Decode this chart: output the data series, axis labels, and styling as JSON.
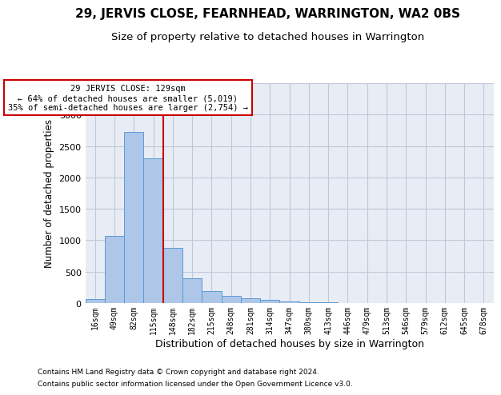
{
  "title1": "29, JERVIS CLOSE, FEARNHEAD, WARRINGTON, WA2 0BS",
  "title2": "Size of property relative to detached houses in Warrington",
  "xlabel": "Distribution of detached houses by size in Warrington",
  "ylabel": "Number of detached properties",
  "categories": [
    "16sqm",
    "49sqm",
    "82sqm",
    "115sqm",
    "148sqm",
    "182sqm",
    "215sqm",
    "248sqm",
    "281sqm",
    "314sqm",
    "347sqm",
    "380sqm",
    "413sqm",
    "446sqm",
    "479sqm",
    "513sqm",
    "546sqm",
    "579sqm",
    "612sqm",
    "645sqm",
    "678sqm"
  ],
  "values": [
    60,
    1075,
    2720,
    2300,
    880,
    400,
    185,
    110,
    75,
    50,
    30,
    18,
    10,
    6,
    4,
    3,
    2,
    2,
    1,
    1,
    1
  ],
  "bar_color": "#aec6e8",
  "bar_edge_color": "#5b9bd5",
  "vline_x": 3.5,
  "annotation_title": "29 JERVIS CLOSE: 129sqm",
  "annotation_line1": "← 64% of detached houses are smaller (5,019)",
  "annotation_line2": "35% of semi-detached houses are larger (2,754) →",
  "annotation_box_color": "#ffffff",
  "annotation_box_edge": "#cc0000",
  "vline_color": "#cc0000",
  "grid_color": "#c0c8d8",
  "bg_color": "#e8edf5",
  "footnote1": "Contains HM Land Registry data © Crown copyright and database right 2024.",
  "footnote2": "Contains public sector information licensed under the Open Government Licence v3.0.",
  "ylim": [
    0,
    3500
  ],
  "title1_fontsize": 11,
  "title2_fontsize": 9.5,
  "xlabel_fontsize": 9,
  "ylabel_fontsize": 8.5
}
